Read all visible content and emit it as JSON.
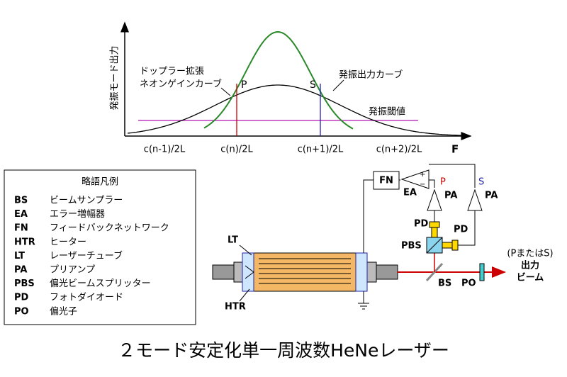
{
  "graph": {
    "y_axis_label": "発振モード出力",
    "x_axis_label": "F",
    "x_ticks": [
      "c(n-1)/2L",
      "c(n)/2L",
      "c(n+1)/2L",
      "c(n+2)/2L"
    ],
    "doppler_label": [
      "ドップラー拡張",
      "ネオンゲインカーブ"
    ],
    "output_curve_label": "発振出力カーブ",
    "threshold_label": "発振閾値",
    "mode_p": "P",
    "mode_s": "S"
  },
  "legend": {
    "title": "略語凡例",
    "items": [
      {
        "abbr": "BS",
        "desc": "ビームサンプラー"
      },
      {
        "abbr": "EA",
        "desc": "エラー増幅器"
      },
      {
        "abbr": "FN",
        "desc": "フィードバックネットワーク"
      },
      {
        "abbr": "HTR",
        "desc": "ヒーター"
      },
      {
        "abbr": "LT",
        "desc": "レーザーチューブ"
      },
      {
        "abbr": "PA",
        "desc": "プリアンプ"
      },
      {
        "abbr": "PBS",
        "desc": "偏光ビームスプリッター"
      },
      {
        "abbr": "PD",
        "desc": "フォトダイオード"
      },
      {
        "abbr": "PO",
        "desc": "偏光子"
      }
    ]
  },
  "diagram": {
    "lt": "LT",
    "htr": "HTR",
    "fn": "FN",
    "ea": "EA",
    "plus": "+",
    "minus": "−",
    "p": "P",
    "s": "S",
    "pa_left": "PA",
    "pa_right": "PA",
    "pd_top": "PD",
    "pd_right": "PD",
    "pbs": "PBS",
    "bs": "BS",
    "po": "PO",
    "output_note": "(PまたはS)",
    "output_1": "出力",
    "output_2": "ビーム"
  },
  "title": "２モード安定化単一周波数HeNeレーザー"
}
